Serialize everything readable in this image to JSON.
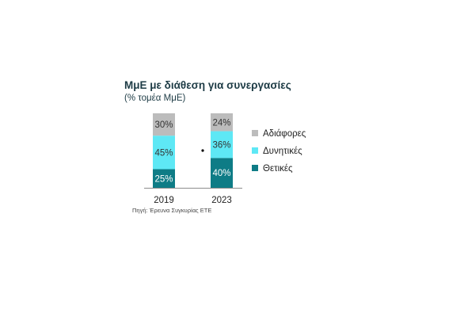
{
  "chart_data": {
    "type": "bar",
    "stacked": true,
    "title": "ΜμΕ με διάθεση για συνεργασίες",
    "subtitle": "(% τομέα ΜμΕ)",
    "categories": [
      "2019",
      "2023"
    ],
    "series": [
      {
        "name": "Θετικές",
        "values": [
          25,
          40
        ],
        "color": "#0e7c86",
        "text_color": "#ffffff"
      },
      {
        "name": "Δυνητικές",
        "values": [
          45,
          36
        ],
        "color": "#5ee8f5",
        "text_color": "#333333"
      },
      {
        "name": "Αδιάφορες",
        "values": [
          30,
          24
        ],
        "color": "#bcbcbc",
        "text_color": "#333333"
      }
    ],
    "value_suffix": "%",
    "ylim": [
      0,
      100
    ],
    "grid": false,
    "legend_position": "right",
    "legend_order": [
      "Αδιάφορες",
      "Δυνητικές",
      "Θετικές"
    ],
    "source": "Πηγή: Έρευνα Συγκυρίας ΕΤΕ"
  }
}
